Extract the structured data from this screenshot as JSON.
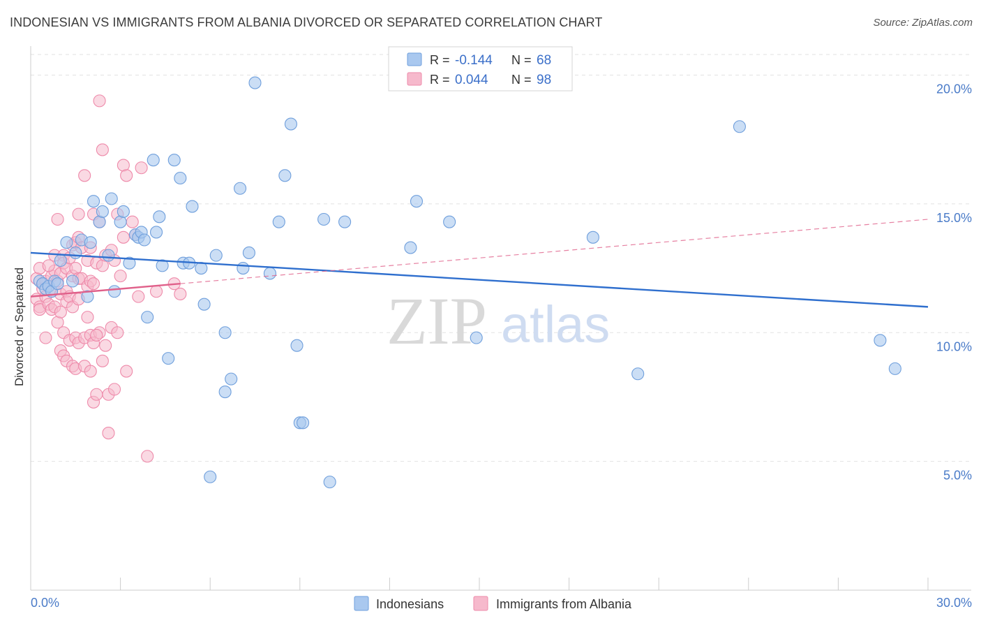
{
  "title": "INDONESIAN VS IMMIGRANTS FROM ALBANIA DIVORCED OR SEPARATED CORRELATION CHART",
  "source": "Source: ZipAtlas.com",
  "watermark": {
    "zip": "ZIP",
    "atlas": "atlas"
  },
  "colors": {
    "blue_fill": "#a9c8ef",
    "blue_stroke": "#6f9fdc",
    "blue_line": "#2f6fce",
    "pink_fill": "#f6b9cc",
    "pink_stroke": "#ee8aaa",
    "pink_line": "#e0608a",
    "tick_text": "#4a7bc8",
    "grid": "#e2e2e2"
  },
  "legend_top": {
    "rows": [
      {
        "r_label": "R =",
        "r_value": "-0.144",
        "n_label": "N =",
        "n_value": "68",
        "series": "blue"
      },
      {
        "r_label": "R =",
        "r_value": "0.044",
        "n_label": "N =",
        "n_value": "98",
        "series": "pink"
      }
    ]
  },
  "legend_bottom": [
    {
      "label": "Indonesians",
      "series": "blue"
    },
    {
      "label": "Immigrants from Albania",
      "series": "pink"
    }
  ],
  "chart_data": {
    "type": "scatter",
    "title": "INDONESIAN VS IMMIGRANTS FROM ALBANIA DIVORCED OR SEPARATED CORRELATION CHART",
    "xlabel": "",
    "ylabel": "Divorced or Separated",
    "xlim": [
      0,
      30
    ],
    "ylim": [
      0,
      20.8
    ],
    "x_tick_labels": [
      "0.0%",
      "30.0%"
    ],
    "y_ticks": [
      5,
      10,
      15,
      20
    ],
    "y_tick_labels": [
      "5.0%",
      "10.0%",
      "15.0%",
      "20.0%"
    ],
    "grid": true,
    "legend_placement": "top-center and bottom",
    "series": [
      {
        "name": "Indonesians",
        "color": "blue",
        "r": -0.144,
        "n": 68,
        "trend": {
          "x": [
            0,
            30
          ],
          "y": [
            13.1,
            11.0
          ],
          "style": "solid"
        },
        "points": [
          [
            0.3,
            12.0
          ],
          [
            0.4,
            11.9
          ],
          [
            0.5,
            11.7
          ],
          [
            0.6,
            11.8
          ],
          [
            0.7,
            11.6
          ],
          [
            0.8,
            12.0
          ],
          [
            0.9,
            11.9
          ],
          [
            1.0,
            12.8
          ],
          [
            1.2,
            13.5
          ],
          [
            1.4,
            12.0
          ],
          [
            1.5,
            13.1
          ],
          [
            1.7,
            13.6
          ],
          [
            1.9,
            11.4
          ],
          [
            2.0,
            13.5
          ],
          [
            2.1,
            15.1
          ],
          [
            2.3,
            14.3
          ],
          [
            2.4,
            14.7
          ],
          [
            2.6,
            13.0
          ],
          [
            2.7,
            15.2
          ],
          [
            2.8,
            11.6
          ],
          [
            3.0,
            14.3
          ],
          [
            3.1,
            14.7
          ],
          [
            3.3,
            12.7
          ],
          [
            3.5,
            13.8
          ],
          [
            3.6,
            13.7
          ],
          [
            3.7,
            13.9
          ],
          [
            3.8,
            13.6
          ],
          [
            3.9,
            10.6
          ],
          [
            4.1,
            16.7
          ],
          [
            4.2,
            13.9
          ],
          [
            4.3,
            14.5
          ],
          [
            4.4,
            12.6
          ],
          [
            4.6,
            9.0
          ],
          [
            4.8,
            16.7
          ],
          [
            5.0,
            16.0
          ],
          [
            5.1,
            12.7
          ],
          [
            5.3,
            12.7
          ],
          [
            5.4,
            14.9
          ],
          [
            5.7,
            12.5
          ],
          [
            5.8,
            11.1
          ],
          [
            6.2,
            13.0
          ],
          [
            6.5,
            10.0
          ],
          [
            6.7,
            8.2
          ],
          [
            6.5,
            7.7
          ],
          [
            6.0,
            4.4
          ],
          [
            7.0,
            15.6
          ],
          [
            7.1,
            12.5
          ],
          [
            7.3,
            13.1
          ],
          [
            7.5,
            19.7
          ],
          [
            8.0,
            12.3
          ],
          [
            8.3,
            14.3
          ],
          [
            8.5,
            16.1
          ],
          [
            8.7,
            18.1
          ],
          [
            8.9,
            9.5
          ],
          [
            9.0,
            6.5
          ],
          [
            9.1,
            6.5
          ],
          [
            9.8,
            14.4
          ],
          [
            10.0,
            4.2
          ],
          [
            10.5,
            14.3
          ],
          [
            12.7,
            13.3
          ],
          [
            12.9,
            15.1
          ],
          [
            14.0,
            14.3
          ],
          [
            14.9,
            9.8
          ],
          [
            18.8,
            13.7
          ],
          [
            20.3,
            8.4
          ],
          [
            23.7,
            18.0
          ],
          [
            28.4,
            9.7
          ],
          [
            28.9,
            8.6
          ]
        ]
      },
      {
        "name": "Immigrants from Albania",
        "color": "pink",
        "r": 0.044,
        "n": 98,
        "trend": {
          "x": [
            0,
            30
          ],
          "y": [
            11.4,
            14.4
          ],
          "style": "solid to 5.0, dashed beyond"
        },
        "points": [
          [
            0.2,
            12.1
          ],
          [
            0.2,
            11.3
          ],
          [
            0.3,
            12.5
          ],
          [
            0.3,
            11.0
          ],
          [
            0.3,
            10.9
          ],
          [
            0.4,
            11.9
          ],
          [
            0.4,
            11.7
          ],
          [
            0.5,
            12.0
          ],
          [
            0.5,
            11.4
          ],
          [
            0.5,
            9.8
          ],
          [
            0.6,
            11.8
          ],
          [
            0.6,
            11.1
          ],
          [
            0.7,
            12.2
          ],
          [
            0.7,
            11.6
          ],
          [
            0.7,
            10.9
          ],
          [
            0.8,
            13.0
          ],
          [
            0.8,
            12.4
          ],
          [
            0.8,
            11.0
          ],
          [
            0.9,
            14.4
          ],
          [
            0.9,
            12.0
          ],
          [
            0.9,
            10.4
          ],
          [
            1.0,
            12.3
          ],
          [
            1.0,
            11.5
          ],
          [
            1.0,
            9.3
          ],
          [
            1.1,
            13.0
          ],
          [
            1.1,
            12.7
          ],
          [
            1.1,
            10.0
          ],
          [
            1.1,
            9.1
          ],
          [
            1.2,
            12.5
          ],
          [
            1.2,
            11.6
          ],
          [
            1.2,
            11.2
          ],
          [
            1.2,
            8.9
          ],
          [
            1.3,
            12.9
          ],
          [
            1.3,
            11.4
          ],
          [
            1.3,
            9.7
          ],
          [
            1.4,
            13.4
          ],
          [
            1.4,
            12.2
          ],
          [
            1.4,
            11.0
          ],
          [
            1.4,
            8.7
          ],
          [
            1.5,
            13.5
          ],
          [
            1.5,
            12.5
          ],
          [
            1.5,
            9.8
          ],
          [
            1.5,
            8.6
          ],
          [
            1.6,
            13.7
          ],
          [
            1.6,
            12.1
          ],
          [
            1.6,
            11.3
          ],
          [
            1.6,
            9.6
          ],
          [
            1.7,
            13.3
          ],
          [
            1.7,
            12.1
          ],
          [
            1.8,
            16.1
          ],
          [
            1.8,
            9.8
          ],
          [
            1.8,
            8.7
          ],
          [
            1.9,
            12.8
          ],
          [
            1.9,
            11.8
          ],
          [
            1.9,
            10.6
          ],
          [
            2.0,
            13.3
          ],
          [
            2.0,
            12.0
          ],
          [
            2.0,
            9.9
          ],
          [
            2.0,
            8.5
          ],
          [
            2.1,
            14.6
          ],
          [
            2.1,
            11.9
          ],
          [
            2.1,
            7.3
          ],
          [
            2.1,
            9.6
          ],
          [
            2.2,
            12.7
          ],
          [
            2.2,
            7.6
          ],
          [
            2.3,
            14.3
          ],
          [
            2.3,
            10.0
          ],
          [
            2.4,
            17.1
          ],
          [
            2.4,
            12.6
          ],
          [
            2.4,
            8.9
          ],
          [
            2.5,
            13.0
          ],
          [
            2.5,
            9.5
          ],
          [
            2.6,
            7.6
          ],
          [
            2.6,
            6.1
          ],
          [
            2.7,
            13.2
          ],
          [
            2.7,
            10.2
          ],
          [
            2.8,
            12.8
          ],
          [
            2.8,
            7.8
          ],
          [
            2.9,
            14.6
          ],
          [
            2.9,
            10.0
          ],
          [
            3.0,
            12.2
          ],
          [
            3.1,
            16.5
          ],
          [
            3.1,
            13.7
          ],
          [
            3.2,
            16.1
          ],
          [
            3.2,
            8.5
          ],
          [
            3.4,
            14.3
          ],
          [
            3.5,
            13.8
          ],
          [
            3.6,
            11.4
          ],
          [
            3.7,
            16.4
          ],
          [
            3.9,
            5.2
          ],
          [
            4.2,
            11.6
          ],
          [
            4.8,
            11.9
          ],
          [
            5.0,
            11.5
          ],
          [
            2.3,
            19.0
          ],
          [
            1.6,
            14.6
          ],
          [
            2.2,
            9.9
          ],
          [
            1.0,
            10.8
          ],
          [
            0.6,
            12.6
          ]
        ]
      }
    ]
  }
}
